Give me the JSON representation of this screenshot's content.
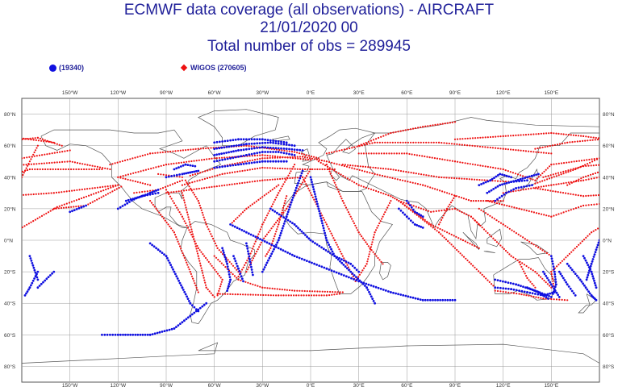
{
  "title": {
    "line1": "ECMWF data coverage (all observations) - AIRCRAFT",
    "line2": "21/01/2020 00",
    "line3": "Total number of obs = 289945"
  },
  "legend": [
    {
      "label": "(19340)",
      "color": "#1010e0",
      "marker": "circle"
    },
    {
      "label": "WIGOS (270605)",
      "color": "#ee1111",
      "marker": "diamond"
    }
  ],
  "map": {
    "projection": "equirectangular",
    "lon_range": [
      -180,
      180
    ],
    "lat_range": [
      -90,
      90
    ],
    "lon_labels": [
      "150°W",
      "120°W",
      "90°W",
      "60°W",
      "30°W",
      "0°E",
      "30°E",
      "60°E",
      "90°E",
      "120°E",
      "150°E"
    ],
    "lon_values": [
      -150,
      -120,
      -90,
      -60,
      -30,
      0,
      30,
      60,
      90,
      120,
      150
    ],
    "lat_labels": [
      "80°N",
      "60°N",
      "40°N",
      "20°N",
      "0°N",
      "20°S",
      "40°S",
      "60°S",
      "80°S"
    ],
    "lat_values": [
      80,
      60,
      40,
      20,
      0,
      -20,
      -40,
      -60,
      -80
    ],
    "grid": true,
    "colors": {
      "wigos": "#ee1111",
      "other": "#1010e0",
      "coast": "#444444",
      "grid": "#999999"
    }
  }
}
